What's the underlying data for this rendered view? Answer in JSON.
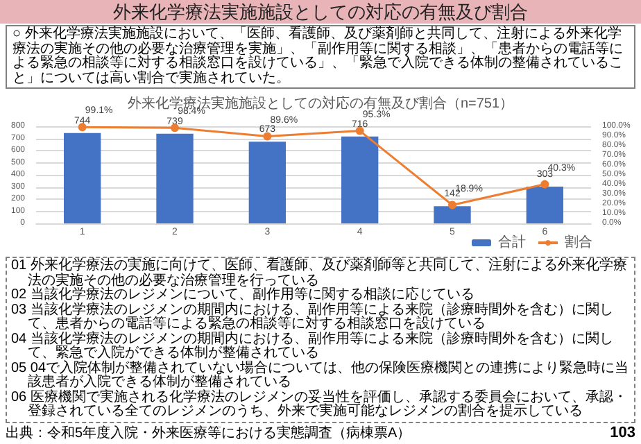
{
  "chart_data": {
    "type": "line",
    "title": "外来化学療法実施施設としての対応の有無及び割合",
    "subtitle": "外来化学療法実施施設としての対応の有無及び割合（n=751）",
    "categories": [
      "1",
      "2",
      "3",
      "4",
      "5",
      "6"
    ],
    "series": [
      {
        "name": "合計",
        "type": "bar",
        "color": "#4472c4",
        "values": [
          744,
          739,
          673,
          716,
          142,
          303
        ],
        "value_labels": [
          "744",
          "739",
          "673",
          "716",
          "142",
          "303"
        ]
      },
      {
        "name": "割合",
        "axis": "y2",
        "color": "#ed7d31",
        "values": [
          99.1,
          98.4,
          89.6,
          95.3,
          18.9,
          40.3
        ],
        "value_labels": [
          "99.1%",
          "98.4%",
          "89.6%",
          "95.3%",
          "18.9%",
          "40.3%"
        ]
      }
    ],
    "ylim": [
      0,
      800
    ],
    "yticks": [
      0,
      100,
      200,
      300,
      400,
      500,
      600,
      700,
      800
    ],
    "y2lim": [
      0,
      100
    ],
    "y2ticks": [
      {
        "value": 0,
        "label": "0.0%"
      },
      {
        "value": 10,
        "label": "10.0%"
      },
      {
        "value": 20,
        "label": "20.0%"
      },
      {
        "value": 30,
        "label": "30.0%"
      },
      {
        "value": 40,
        "label": "40.0%"
      },
      {
        "value": 50,
        "label": "50.0%"
      },
      {
        "value": 60,
        "label": "60.0%"
      },
      {
        "value": 70,
        "label": "70.0%"
      },
      {
        "value": 80,
        "label": "80.0%"
      },
      {
        "value": 90,
        "label": "90.0%"
      },
      {
        "value": 100,
        "label": "100.0%"
      }
    ],
    "grid": "y",
    "legend": "bottom right",
    "marker": "circle",
    "annotations": [
      "○ 外来化学療法実施施設において、「医師、看護師、及び薬剤師と共同して、注射による外来化学療法の実施その他の必要な治療管理を実施」、「副作用等に関する相談」、「患者からの電話等による緊急の相談等に対する相談窓口を設けている」、「緊急で入院できる体制の整備されていること」については高い割合で実施されていた。",
      "01 外来化学療法の実施に向けて、医師、看護師、及び薬剤師等と共同して、注射による外来化学療法の実施その他の必要な治療管理を行っている",
      "02 当該化学療法のレジメンについて、副作用等に関する相談に応じている",
      "03 当該化学療法のレジメンの期間内における、副作用等による来院（診療時間外を含む）に関して、患者からの電話等による緊急の相談等に対する相談窓口を設けている",
      "04 当該化学療法のレジメンの期間内における、副作用等による来院（診療時間外を含む）に関して、緊急で入院ができる体制が整備されている",
      "05 04で入院体制が整備されていない場合については、他の保険医療機関との連携により緊急時に当該患者が入院できる体制が整備されている",
      "06 医療機関で実施される化学療法のレジメンの妥当性を評価し、承認する委員会において、承認・登録されている全てのレジメンのうち、外来で実施可能なレジメンの割合を提示している",
      "出典：令和5年度入院・外来医療等における実態調査（病棟票A）",
      "103"
    ]
  }
}
